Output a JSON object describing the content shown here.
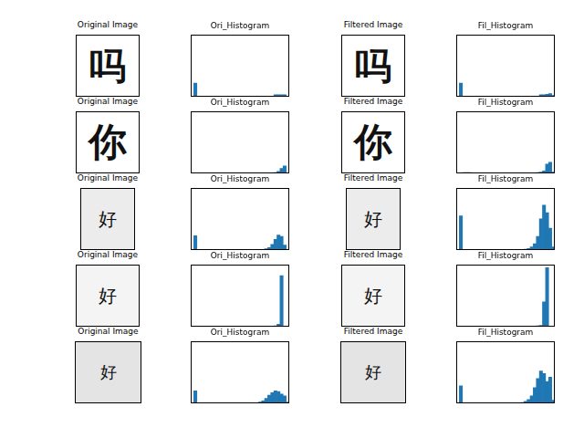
{
  "chart_data": [
    {
      "type": "histogram",
      "title": "Ori_Histogram",
      "color": "#1f77b4",
      "grid": false,
      "tick_labels": false,
      "xlim": [
        0,
        256
      ],
      "ylim": [
        0,
        100
      ],
      "bins": [
        0,
        8,
        16,
        24,
        32,
        40,
        48,
        56,
        64,
        72,
        80,
        88,
        96,
        104,
        112,
        120,
        128,
        136,
        144,
        152,
        160,
        168,
        176,
        184,
        192,
        200,
        208,
        216,
        224,
        232,
        240,
        248,
        256
      ],
      "values": [
        0,
        22,
        0.5,
        0,
        0,
        0,
        0,
        0,
        0,
        0,
        0,
        0,
        0,
        0,
        0,
        0,
        0,
        0,
        0,
        0,
        0,
        0,
        0,
        0,
        0,
        0,
        0.5,
        3,
        3,
        3,
        3,
        1
      ]
    },
    {
      "type": "histogram",
      "title": "Fil_Histogram",
      "color": "#1f77b4",
      "grid": false,
      "tick_labels": false,
      "xlim": [
        0,
        256
      ],
      "ylim": [
        0,
        100
      ],
      "bins": [
        0,
        8,
        16,
        24,
        32,
        40,
        48,
        56,
        64,
        72,
        80,
        88,
        96,
        104,
        112,
        120,
        128,
        136,
        144,
        152,
        160,
        168,
        176,
        184,
        192,
        200,
        208,
        216,
        224,
        232,
        240,
        248,
        256
      ],
      "values": [
        0,
        22,
        0.5,
        0.3,
        0,
        0,
        0,
        0,
        0,
        0,
        0,
        0,
        0,
        0,
        0,
        0,
        0,
        0,
        0,
        0,
        0,
        0,
        0,
        0,
        0,
        0.3,
        1,
        3,
        3,
        4,
        5,
        2
      ]
    },
    {
      "type": "histogram",
      "title": "Ori_Histogram",
      "color": "#1f77b4",
      "grid": false,
      "tick_labels": false,
      "xlim": [
        0,
        256
      ],
      "ylim": [
        0,
        100
      ],
      "bins": [
        0,
        8,
        16,
        24,
        32,
        40,
        48,
        56,
        64,
        72,
        80,
        88,
        96,
        104,
        112,
        120,
        128,
        136,
        144,
        152,
        160,
        168,
        176,
        184,
        192,
        200,
        208,
        216,
        224,
        232,
        240,
        248,
        256
      ],
      "values": [
        0,
        0,
        1,
        1,
        0.8,
        0.6,
        0.5,
        0.5,
        0.5,
        0.4,
        0.4,
        0.4,
        0.4,
        0.4,
        0.4,
        0.4,
        0.4,
        0.4,
        0.4,
        0.4,
        0.4,
        0.5,
        0.5,
        0.5,
        0.6,
        0.8,
        1,
        1.5,
        3,
        8,
        12,
        0
      ]
    },
    {
      "type": "histogram",
      "title": "Fil_Histogram",
      "color": "#1f77b4",
      "grid": false,
      "tick_labels": false,
      "xlim": [
        0,
        256
      ],
      "ylim": [
        0,
        100
      ],
      "bins": [
        0,
        8,
        16,
        24,
        32,
        40,
        48,
        56,
        64,
        72,
        80,
        88,
        96,
        104,
        112,
        120,
        128,
        136,
        144,
        152,
        160,
        168,
        176,
        184,
        192,
        200,
        208,
        216,
        224,
        232,
        240,
        248,
        256
      ],
      "values": [
        0,
        0,
        1.5,
        1.5,
        1.5,
        1,
        1,
        1,
        1,
        0.8,
        0.8,
        0.8,
        0.8,
        0.8,
        0.8,
        0.8,
        0.8,
        0.8,
        0.8,
        0.8,
        0.8,
        0.8,
        0.8,
        0.8,
        1,
        1,
        1.5,
        2,
        4,
        15,
        18,
        2
      ]
    },
    {
      "type": "histogram",
      "title": "Ori_Histogram",
      "color": "#1f77b4",
      "grid": false,
      "tick_labels": false,
      "xlim": [
        0,
        256
      ],
      "ylim": [
        0,
        100
      ],
      "bins": [
        0,
        8,
        16,
        24,
        32,
        40,
        48,
        56,
        64,
        72,
        80,
        88,
        96,
        104,
        112,
        120,
        128,
        136,
        144,
        152,
        160,
        168,
        176,
        184,
        192,
        200,
        208,
        216,
        224,
        232,
        240,
        248,
        256
      ],
      "values": [
        0,
        23,
        0.5,
        0.3,
        0.3,
        0.3,
        0.3,
        0.3,
        0.3,
        0.3,
        0.3,
        0.3,
        0.3,
        0.3,
        0.3,
        0.3,
        0.3,
        0.3,
        0.3,
        0.3,
        0.5,
        0.5,
        0.8,
        1,
        2,
        4,
        9,
        17,
        24,
        22,
        8,
        1
      ]
    },
    {
      "type": "histogram",
      "title": "Fil_Histogram",
      "color": "#1f77b4",
      "grid": false,
      "tick_labels": false,
      "xlim": [
        0,
        256
      ],
      "ylim": [
        0,
        100
      ],
      "bins": [
        0,
        8,
        16,
        24,
        32,
        40,
        48,
        56,
        64,
        72,
        80,
        88,
        96,
        104,
        112,
        120,
        128,
        136,
        144,
        152,
        160,
        168,
        176,
        184,
        192,
        200,
        208,
        216,
        224,
        232,
        240,
        248,
        256
      ],
      "values": [
        0,
        55,
        1,
        0.5,
        0.5,
        0.5,
        0.5,
        0.5,
        0.5,
        0.5,
        0.5,
        0.5,
        0.5,
        0.5,
        0.5,
        0.5,
        0.5,
        0.5,
        0.5,
        0.5,
        0.8,
        1,
        1.5,
        2.5,
        5,
        10,
        22,
        50,
        72,
        60,
        35,
        5
      ]
    },
    {
      "type": "histogram",
      "title": "Ori_Histogram",
      "color": "#1f77b4",
      "grid": false,
      "tick_labels": false,
      "xlim": [
        0,
        256
      ],
      "ylim": [
        0,
        100
      ],
      "bins": [
        0,
        8,
        16,
        24,
        32,
        40,
        48,
        56,
        64,
        72,
        80,
        88,
        96,
        104,
        112,
        120,
        128,
        136,
        144,
        152,
        160,
        168,
        176,
        184,
        192,
        200,
        208,
        216,
        224,
        232,
        240,
        248,
        256
      ],
      "values": [
        0,
        0,
        0.3,
        0.5,
        0.5,
        0.5,
        0.3,
        0.3,
        0.3,
        0.3,
        0.3,
        0.3,
        0.3,
        0.3,
        0.3,
        0.3,
        0.3,
        0.3,
        0.3,
        0.3,
        0.3,
        0.3,
        0.3,
        0.4,
        0.5,
        0.5,
        0.8,
        1.5,
        4,
        82,
        0,
        0
      ]
    },
    {
      "type": "histogram",
      "title": "Fil_Histogram",
      "color": "#1f77b4",
      "grid": false,
      "tick_labels": false,
      "xlim": [
        0,
        256
      ],
      "ylim": [
        0,
        100
      ],
      "bins": [
        0,
        8,
        16,
        24,
        32,
        40,
        48,
        56,
        64,
        72,
        80,
        88,
        96,
        104,
        112,
        120,
        128,
        136,
        144,
        152,
        160,
        168,
        176,
        184,
        192,
        200,
        208,
        216,
        224,
        232,
        240,
        248,
        256
      ],
      "values": [
        0,
        0,
        0.5,
        0.5,
        0.5,
        0.5,
        0.3,
        0.3,
        0.3,
        0.3,
        0.3,
        0.3,
        0.3,
        0.3,
        0.3,
        0.3,
        0.3,
        0.3,
        0.3,
        0.3,
        0.3,
        0.3,
        0.3,
        0.5,
        1,
        1,
        1.2,
        2,
        40,
        95,
        0,
        0
      ]
    },
    {
      "type": "histogram",
      "title": "Ori_Histogram",
      "color": "#1f77b4",
      "grid": false,
      "tick_labels": false,
      "xlim": [
        0,
        256
      ],
      "ylim": [
        0,
        100
      ],
      "bins": [
        0,
        8,
        16,
        24,
        32,
        40,
        48,
        56,
        64,
        72,
        80,
        88,
        96,
        104,
        112,
        120,
        128,
        136,
        144,
        152,
        160,
        168,
        176,
        184,
        192,
        200,
        208,
        216,
        224,
        232,
        240,
        248,
        256
      ],
      "values": [
        0,
        20,
        0.3,
        0.3,
        0.3,
        0.3,
        0.3,
        0.3,
        0.3,
        0.3,
        0.3,
        0.3,
        0.3,
        0.3,
        0.3,
        0.3,
        0.3,
        0.3,
        0.3,
        0.5,
        0.8,
        1,
        2,
        4,
        8,
        13,
        17,
        20,
        19,
        15,
        12,
        2
      ]
    },
    {
      "type": "histogram",
      "title": "Fil_Histogram",
      "color": "#1f77b4",
      "grid": false,
      "tick_labels": false,
      "xlim": [
        0,
        256
      ],
      "ylim": [
        0,
        100
      ],
      "bins": [
        0,
        8,
        16,
        24,
        32,
        40,
        48,
        56,
        64,
        72,
        80,
        88,
        96,
        104,
        112,
        120,
        128,
        136,
        144,
        152,
        160,
        168,
        176,
        184,
        192,
        200,
        208,
        216,
        224,
        232,
        240,
        248,
        256
      ],
      "values": [
        0,
        28,
        1,
        0.5,
        0.5,
        0.5,
        0.5,
        0.5,
        0.5,
        0.5,
        0.5,
        0.5,
        0.5,
        0.5,
        0.5,
        0.5,
        0.5,
        0.5,
        0.5,
        0.8,
        1,
        1.5,
        3,
        6,
        12,
        25,
        40,
        52,
        48,
        35,
        42,
        5
      ]
    }
  ],
  "images": [
    {
      "title": "Original Image",
      "text": "吗",
      "color": "#ffffff"
    },
    {
      "title": "Filtered Image",
      "text": "吗",
      "color": "#ffffff"
    },
    {
      "title": "Original Image",
      "text": "你",
      "color": "#ffffff"
    },
    {
      "title": "Filtered Image",
      "text": "你",
      "color": "#ffffff"
    },
    {
      "title": "Original Image",
      "text": "好",
      "color": "#ececec"
    },
    {
      "title": "Filtered Image",
      "text": "好",
      "color": "#ececec"
    },
    {
      "title": "Original Image",
      "text": "好",
      "color": "#f4f4f4"
    },
    {
      "title": "Filtered Image",
      "text": "好",
      "color": "#f4f4f4"
    },
    {
      "title": "Original Image",
      "text": "好",
      "color": "#e4e4e4"
    },
    {
      "title": "Filtered Image",
      "text": "好",
      "color": "#e4e4e4"
    }
  ]
}
